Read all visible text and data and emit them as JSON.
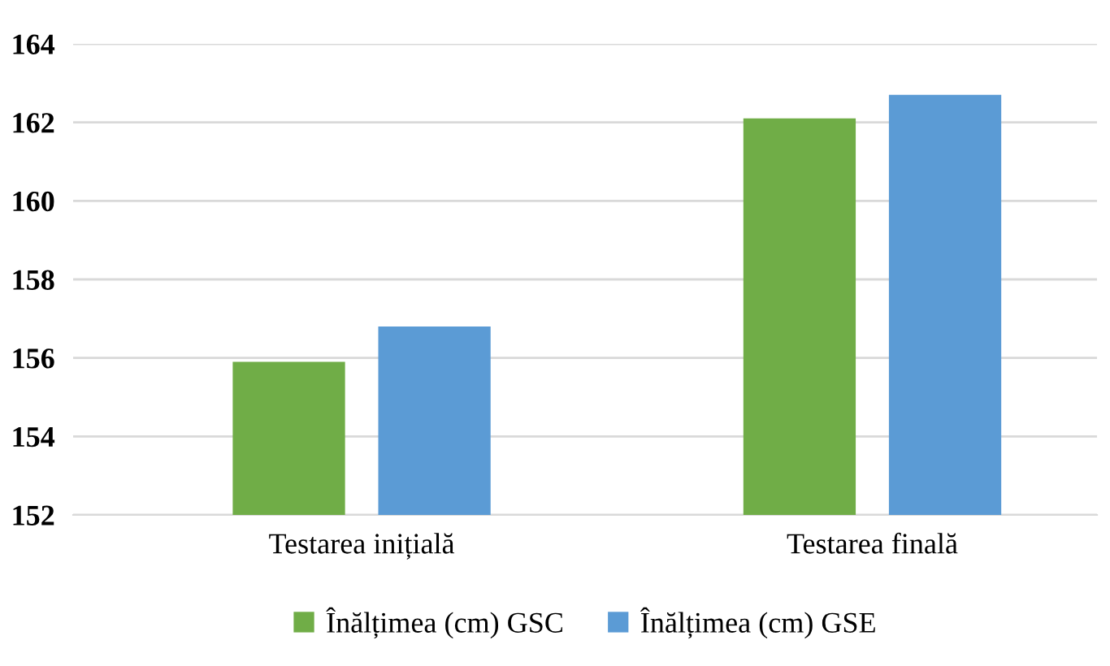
{
  "chart_data": {
    "type": "bar",
    "categories": [
      "Testarea inițială",
      "Testarea finală"
    ],
    "series": [
      {
        "name": "Înălțimea (cm) GSC",
        "color": "#70ad47",
        "values": [
          155.9,
          162.1
        ]
      },
      {
        "name": "Înălțimea (cm) GSE",
        "color": "#5b9bd5",
        "values": [
          156.8,
          162.7
        ]
      }
    ],
    "ylim": [
      152,
      164
    ],
    "yticks": [
      152,
      154,
      156,
      158,
      160,
      162,
      164
    ],
    "grid": "y",
    "legend": "bottom"
  }
}
